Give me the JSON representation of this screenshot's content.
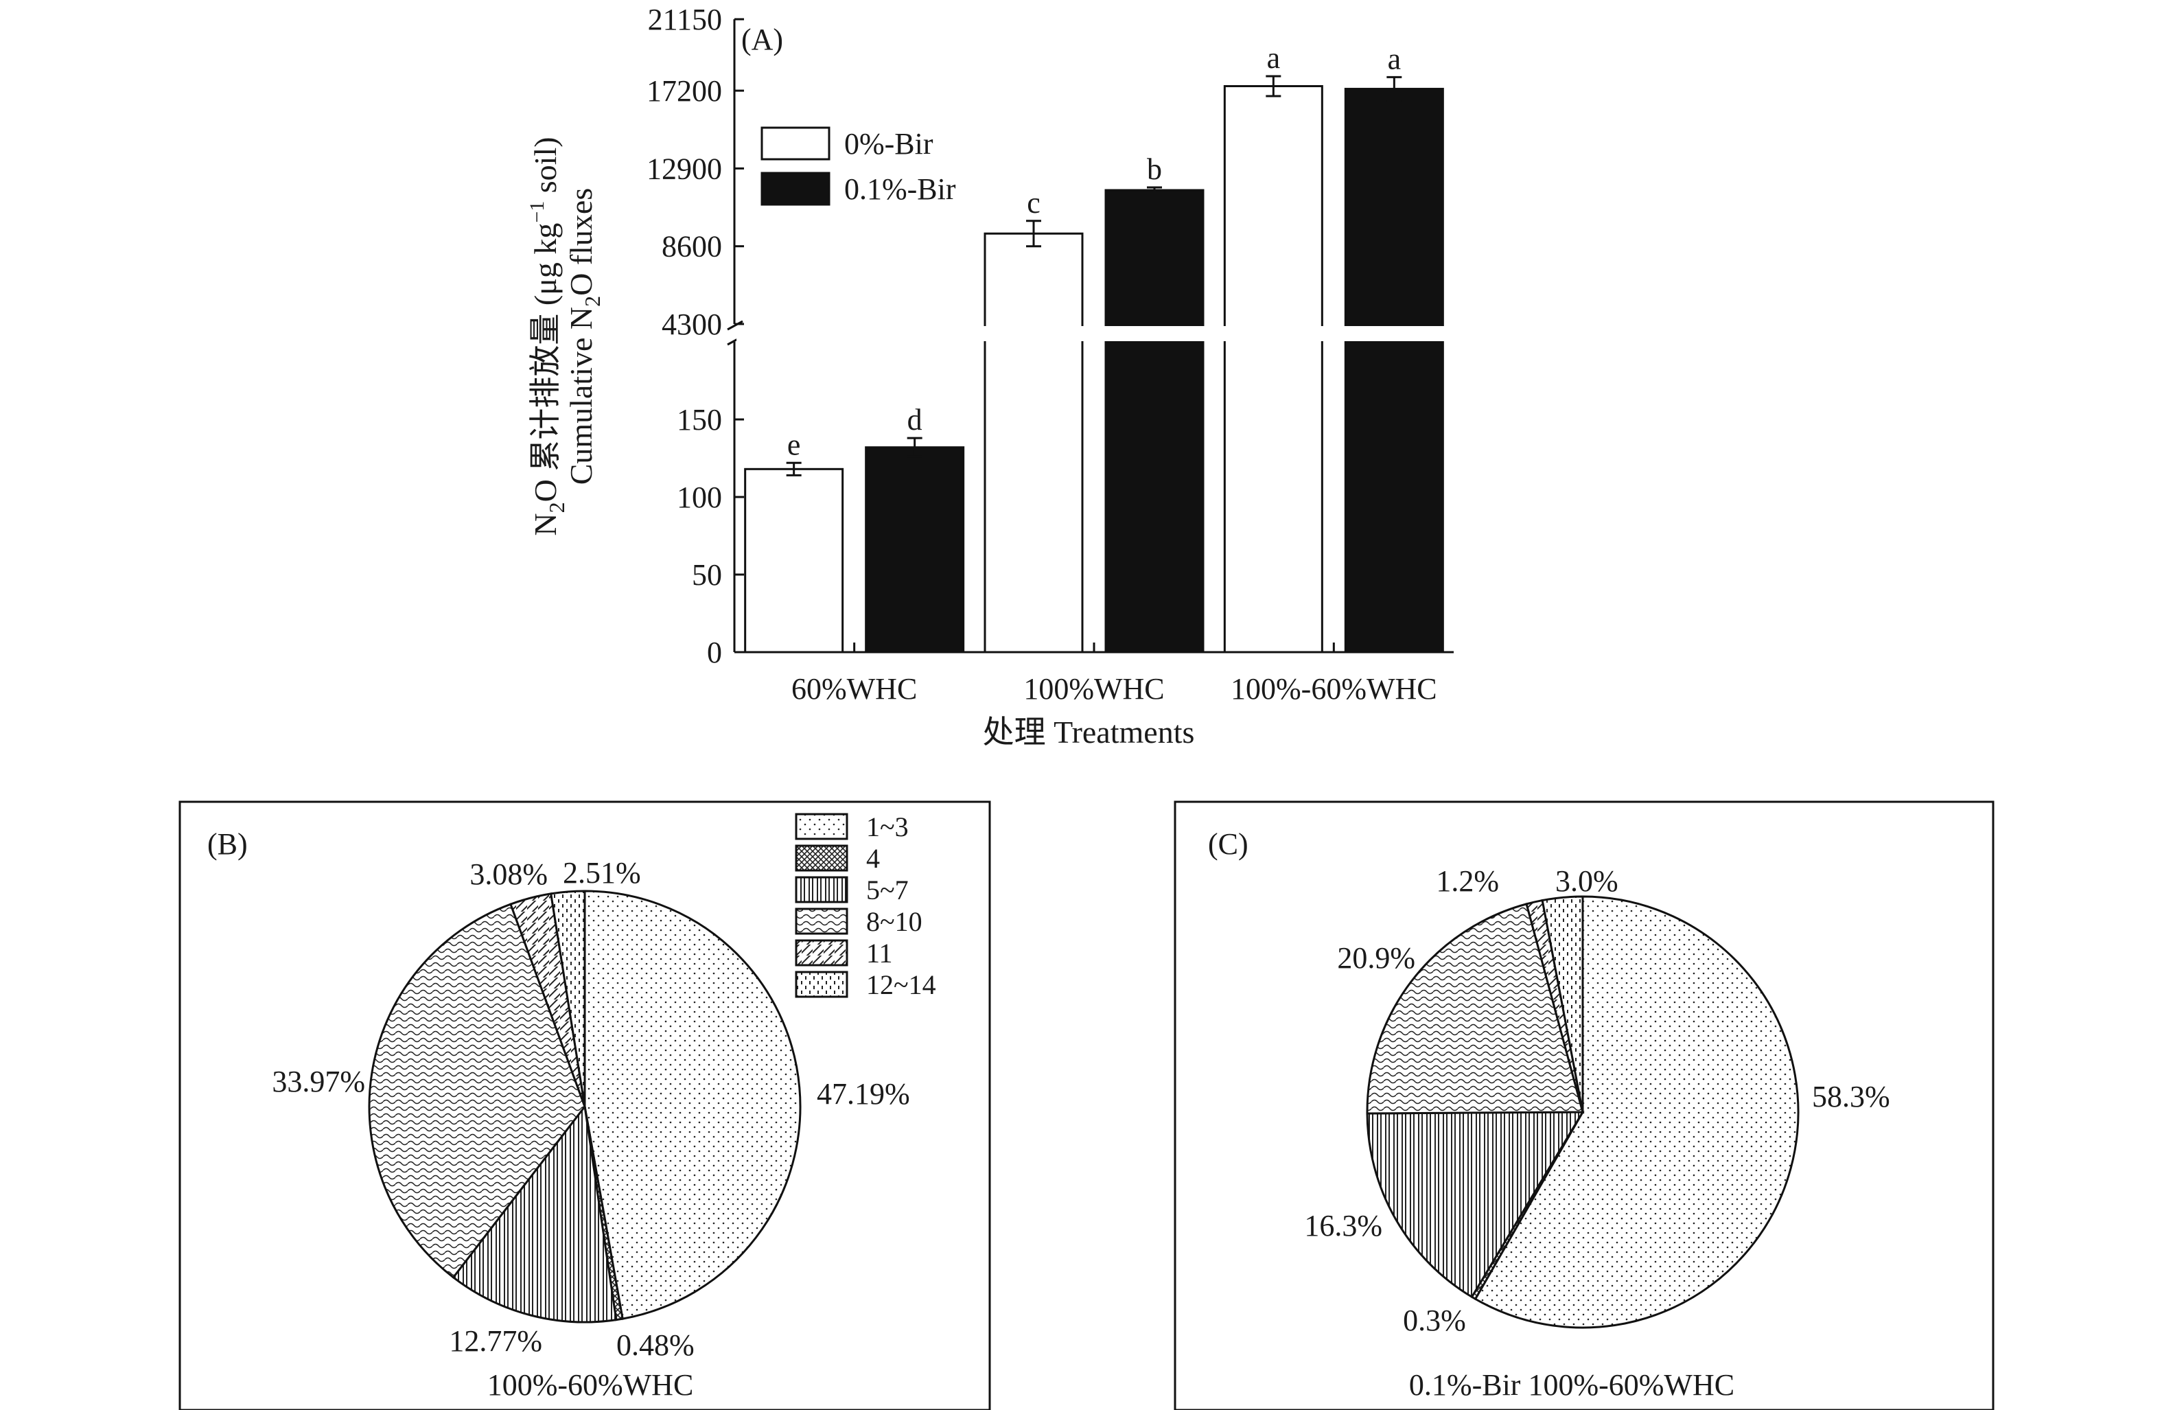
{
  "chart_data": [
    {
      "type": "bar",
      "panel": "(A)",
      "ylabel_cn": "N",
      "ylabel_cn_sub": "2",
      "ylabel_cn_rest": "O 累计排放量 (μg kg",
      "ylabel_cn_sup": "−1",
      "ylabel_cn_end": " soil)",
      "ylabel_en": "Cumulative N",
      "ylabel_en_sub": "2",
      "ylabel_en_rest": "O fluxes",
      "xlabel": "处理 Treatments",
      "categories": [
        "60%WHC",
        "100%WHC",
        "100%-60%WHC"
      ],
      "y_broken_axis": true,
      "ylim_lower": [
        0,
        200
      ],
      "ylim_upper": [
        4300,
        21150
      ],
      "yticks_lower": [
        "0",
        "50",
        "100",
        "150"
      ],
      "yticks_upper": [
        "4300",
        "8600",
        "12900",
        "17200",
        "21150"
      ],
      "series": [
        {
          "name": "0%-Bir",
          "color": "#ffffff",
          "values": [
            118,
            9300,
            17450
          ],
          "errors": [
            4,
            700,
            550
          ],
          "letters": [
            "e",
            "c",
            "a"
          ]
        },
        {
          "name": "0.1%-Bir",
          "color": "#111111",
          "values": [
            132,
            11700,
            17300
          ],
          "errors": [
            6,
            150,
            650
          ],
          "letters": [
            "d",
            "b",
            "a"
          ]
        }
      ],
      "legend_position": "top-left"
    },
    {
      "type": "pie",
      "panel": "(B)",
      "caption": "100%-60%WHC",
      "legend": [
        "1~3",
        "4",
        "5~7",
        "8~10",
        "11",
        "12~14"
      ],
      "values": [
        47.19,
        0.48,
        12.77,
        33.97,
        3.08,
        2.51
      ],
      "labels": [
        "47.19%",
        "0.48%",
        "12.77%",
        "33.97%",
        "3.08%",
        "2.51%"
      ]
    },
    {
      "type": "pie",
      "panel": "(C)",
      "caption": "0.1%-Bir 100%-60%WHC",
      "values": [
        58.3,
        0.3,
        16.3,
        20.9,
        1.2,
        3.0
      ],
      "labels": [
        "58.3%",
        "0.3%",
        "16.3%",
        "20.9%",
        "1.2%",
        "3.0%"
      ]
    }
  ]
}
